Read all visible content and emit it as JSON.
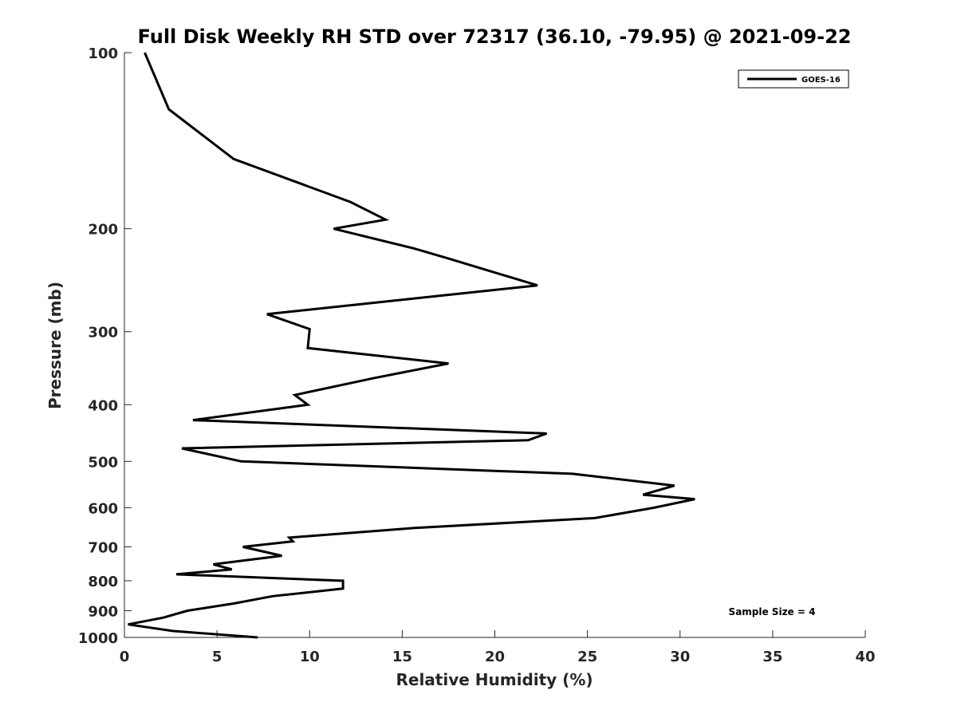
{
  "chart_data": {
    "type": "line",
    "title": "Full Disk Weekly RH STD over 72317 (36.10, -79.95) @ 2021-09-22",
    "xlabel": "Relative Humidity (%)",
    "ylabel": "Pressure (mb)",
    "xlim": [
      0,
      40
    ],
    "ylim": [
      1000,
      100
    ],
    "yscale": "log",
    "y_reversed": true,
    "xticks": [
      0,
      5,
      10,
      15,
      20,
      25,
      30,
      35,
      40
    ],
    "yticks": [
      100,
      200,
      300,
      400,
      500,
      600,
      700,
      800,
      900,
      1000
    ],
    "grid": false,
    "legend": {
      "position": "top-right",
      "entries": [
        "GOES-16"
      ]
    },
    "annotations": [
      "Sample Size = 4"
    ],
    "series": [
      {
        "name": "GOES-16",
        "color": "#000000",
        "points": [
          [
            1.1,
            100
          ],
          [
            2.4,
            125
          ],
          [
            5.9,
            152
          ],
          [
            12.2,
            180
          ],
          [
            14.1,
            193
          ],
          [
            11.3,
            200
          ],
          [
            15.6,
            216
          ],
          [
            17.5,
            225
          ],
          [
            22.3,
            250
          ],
          [
            15.3,
            264
          ],
          [
            7.7,
            280
          ],
          [
            10.0,
            297
          ],
          [
            9.9,
            320
          ],
          [
            17.5,
            340
          ],
          [
            13.5,
            360
          ],
          [
            9.2,
            385
          ],
          [
            9.9,
            400
          ],
          [
            3.7,
            425
          ],
          [
            22.8,
            448
          ],
          [
            21.8,
            460
          ],
          [
            3.1,
            475
          ],
          [
            6.3,
            500
          ],
          [
            24.2,
            525
          ],
          [
            29.7,
            550
          ],
          [
            28.0,
            570
          ],
          [
            30.8,
            580
          ],
          [
            28.6,
            600
          ],
          [
            25.4,
            625
          ],
          [
            15.6,
            650
          ],
          [
            8.9,
            675
          ],
          [
            9.1,
            685
          ],
          [
            6.4,
            700
          ],
          [
            8.5,
            725
          ],
          [
            4.8,
            750
          ],
          [
            5.8,
            765
          ],
          [
            2.8,
            780
          ],
          [
            11.8,
            800
          ],
          [
            11.8,
            825
          ],
          [
            8.0,
            850
          ],
          [
            5.9,
            875
          ],
          [
            3.4,
            900
          ],
          [
            2.1,
            925
          ],
          [
            0.2,
            950
          ],
          [
            2.6,
            975
          ],
          [
            7.2,
            1000
          ]
        ]
      }
    ]
  }
}
